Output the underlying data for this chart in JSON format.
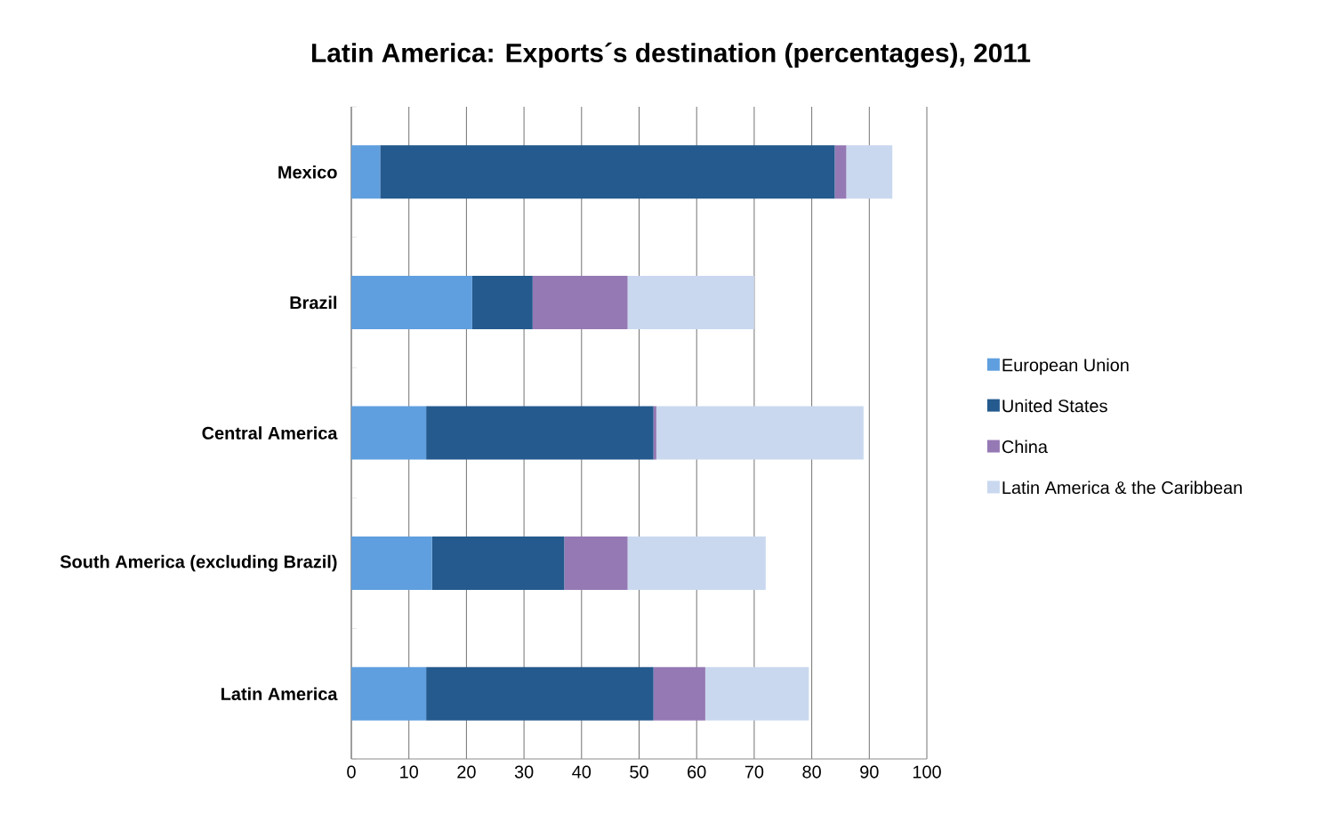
{
  "chart_data": {
    "type": "bar",
    "orientation": "horizontal",
    "stacked": true,
    "title": "Latin America: Exports´s  destination (percentages), 2011",
    "categories": [
      "Mexico",
      "Brazil",
      "Central America",
      "South America (excluding Brazil)",
      "Latin America"
    ],
    "series": [
      {
        "name": "European Union",
        "color": "#5f9fdf",
        "values": [
          5,
          21,
          13,
          14,
          13
        ]
      },
      {
        "name": "United States",
        "color": "#245a8e",
        "values": [
          79,
          10.5,
          39.5,
          23,
          39.5
        ]
      },
      {
        "name": "China",
        "color": "#9579b4",
        "values": [
          2,
          16.5,
          0.5,
          11,
          9
        ]
      },
      {
        "name": "Latin America & the Caribbean",
        "color": "#c9d8ef",
        "values": [
          8,
          22,
          36,
          24,
          18
        ]
      }
    ],
    "xlim": [
      0,
      100
    ],
    "xticks": [
      0,
      10,
      20,
      30,
      40,
      50,
      60,
      70,
      80,
      90,
      100
    ],
    "grid": "x",
    "legend": "right"
  }
}
